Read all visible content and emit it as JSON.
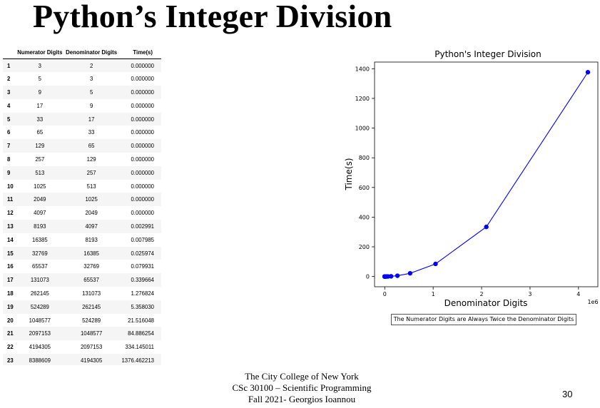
{
  "slide": {
    "title": "Python’s Integer Division",
    "footer_lines": [
      "The City College of New York",
      "CSc 30100 – Scientific Programming",
      "Fall 2021- Georgios Ioannou"
    ],
    "page_number": "30",
    "chart_caption": "The Numerator Digits are Always Twice the Denominator Digits"
  },
  "table": {
    "headers": [
      "",
      "Numerator Digits",
      "Denominator Digits",
      "Time(s)"
    ],
    "rows": [
      [
        "1",
        "3",
        "2",
        "0.000000"
      ],
      [
        "2",
        "5",
        "3",
        "0.000000"
      ],
      [
        "3",
        "9",
        "5",
        "0.000000"
      ],
      [
        "4",
        "17",
        "9",
        "0.000000"
      ],
      [
        "5",
        "33",
        "17",
        "0.000000"
      ],
      [
        "6",
        "65",
        "33",
        "0.000000"
      ],
      [
        "7",
        "129",
        "65",
        "0.000000"
      ],
      [
        "8",
        "257",
        "129",
        "0.000000"
      ],
      [
        "9",
        "513",
        "257",
        "0.000000"
      ],
      [
        "10",
        "1025",
        "513",
        "0.000000"
      ],
      [
        "11",
        "2049",
        "1025",
        "0.000000"
      ],
      [
        "12",
        "4097",
        "2049",
        "0.000000"
      ],
      [
        "13",
        "8193",
        "4097",
        "0.002991"
      ],
      [
        "14",
        "16385",
        "8193",
        "0.007985"
      ],
      [
        "15",
        "32769",
        "16385",
        "0.025974"
      ],
      [
        "16",
        "65537",
        "32769",
        "0.079931"
      ],
      [
        "17",
        "131073",
        "65537",
        "0.339664"
      ],
      [
        "18",
        "262145",
        "131073",
        "1.276824"
      ],
      [
        "19",
        "524289",
        "262145",
        "5.358030"
      ],
      [
        "20",
        "1048577",
        "524289",
        "21.516048"
      ],
      [
        "21",
        "2097153",
        "1048577",
        "84.886254"
      ],
      [
        "22",
        "4194305",
        "2097153",
        "334.145011"
      ],
      [
        "23",
        "8388609",
        "4194305",
        "1376.462213"
      ]
    ]
  },
  "chart_data": {
    "type": "line",
    "title": "Python's Integer Division",
    "xlabel": "Denominator Digits",
    "ylabel": "Time(s)",
    "x_offset_text": "1e6",
    "x_ticks": [
      0,
      1,
      2,
      3,
      4
    ],
    "y_ticks": [
      0,
      200,
      400,
      600,
      800,
      1000,
      1200,
      1400
    ],
    "xlim": [
      -0.21,
      4.4
    ],
    "ylim": [
      -69,
      1445
    ],
    "color": "#0000ff",
    "marker": "circle",
    "series": [
      {
        "x": [
          2,
          3,
          5,
          9,
          17,
          33,
          65,
          129,
          257,
          513,
          1025,
          2049,
          4097,
          8193,
          16385,
          32769,
          65537,
          131073,
          262145,
          524289,
          1048577,
          2097153,
          4194305
        ],
        "y": [
          0,
          0,
          0,
          0,
          0,
          0,
          0,
          0,
          0,
          0,
          0,
          0,
          0.002991,
          0.007985,
          0.025974,
          0.079931,
          0.339664,
          1.276824,
          5.35803,
          21.516048,
          84.886254,
          334.145011,
          1376.462213
        ]
      }
    ]
  }
}
